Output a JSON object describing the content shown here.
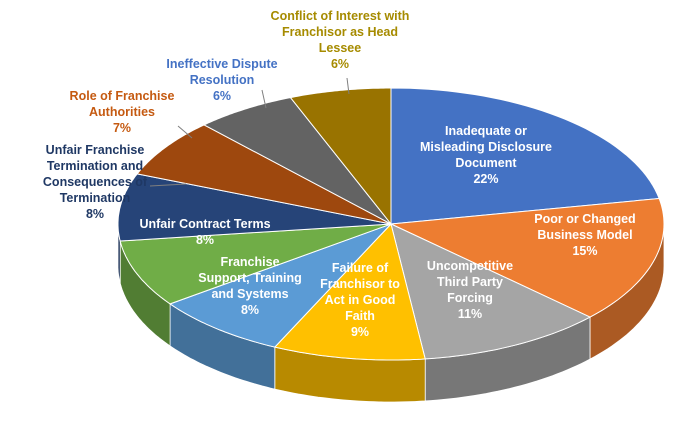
{
  "chart_data": {
    "type": "pie",
    "style": "3d",
    "title": "",
    "start": "12 o'clock, clockwise",
    "slices": [
      {
        "label": "Inadequate or Misleading Disclosure Document",
        "value": 22,
        "display": "22%",
        "color": "#4472C4",
        "label_pos": "inside"
      },
      {
        "label": "Poor or Changed Business Model",
        "value": 15,
        "display": "15%",
        "color": "#ED7D31",
        "label_pos": "inside"
      },
      {
        "label": "Uncompetitive Third Party Forcing",
        "value": 11,
        "display": "11%",
        "color": "#A5A5A5",
        "label_pos": "inside"
      },
      {
        "label": "Failure of Franchisor to Act in Good Faith",
        "value": 9,
        "display": "9%",
        "color": "#FFC000",
        "label_pos": "inside"
      },
      {
        "label": "Franchise Support, Training and Systems",
        "value": 8,
        "display": "8%",
        "color": "#5B9BD5",
        "label_pos": "inside"
      },
      {
        "label": "Unfair Contract Terms",
        "value": 8,
        "display": "8%",
        "color": "#70AD47",
        "label_pos": "inside"
      },
      {
        "label": "Unfair Franchise Termination and Consequences of Termination",
        "value": 8,
        "display": "8%",
        "color": "#264478",
        "label_pos": "outside",
        "text_color": "#1F3864"
      },
      {
        "label": "Role of Franchise Authorities",
        "value": 7,
        "display": "7%",
        "color": "#9E480E",
        "label_pos": "outside",
        "text_color": "#C55A11"
      },
      {
        "label": "Ineffective Dispute Resolution",
        "value": 6,
        "display": "6%",
        "color": "#636363",
        "label_pos": "outside",
        "text_color": "#4472C4"
      },
      {
        "label": "Conflict of Interest with Franchisor as Head Lessee",
        "value": 6,
        "display": "6%",
        "color": "#997300",
        "label_pos": "outside",
        "text_color": "#A68B00"
      }
    ]
  }
}
